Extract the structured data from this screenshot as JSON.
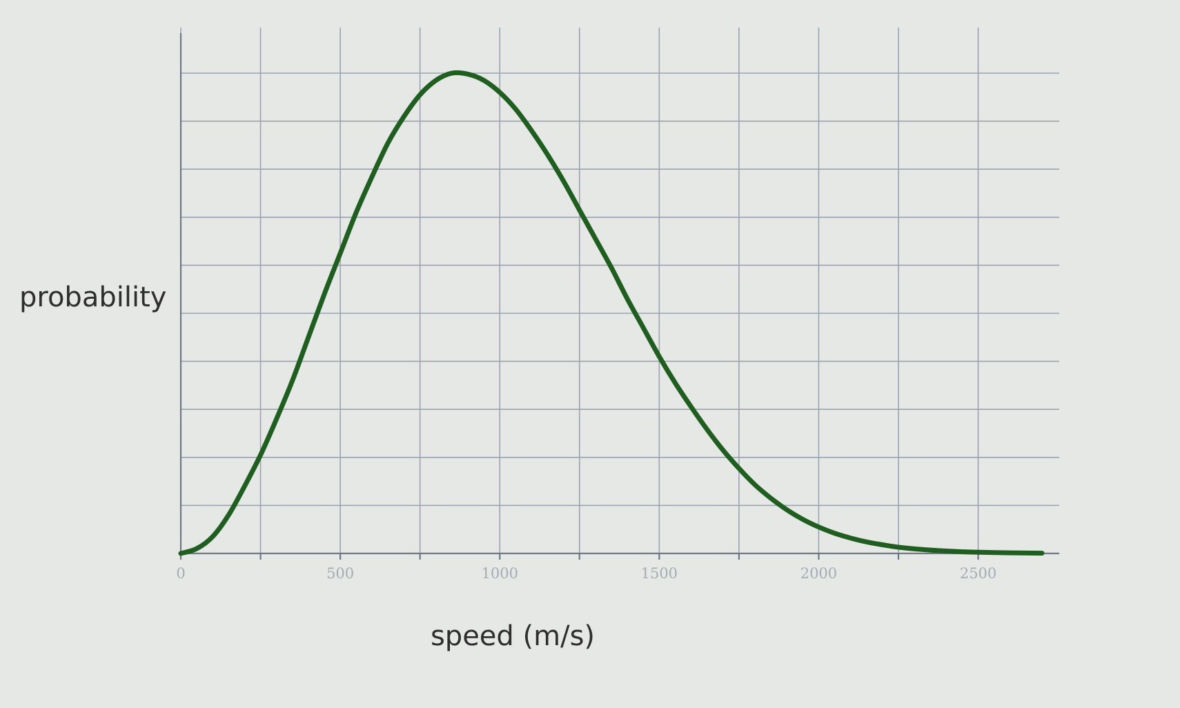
{
  "chart_data": {
    "type": "line",
    "title": "",
    "xlabel": "speed (m/s)",
    "ylabel": "probability",
    "xlim": [
      0,
      2700
    ],
    "ylim": [
      0,
      1.0
    ],
    "grid": true,
    "x_ticks": [
      {
        "value": 0,
        "label": "0"
      },
      {
        "value": 500,
        "label": "500"
      },
      {
        "value": 1000,
        "label": "1000"
      },
      {
        "value": 1500,
        "label": "1500"
      },
      {
        "value": 2000,
        "label": "2000"
      },
      {
        "value": 2500,
        "label": "2500"
      }
    ],
    "x_gridlines": [
      0,
      250,
      500,
      750,
      1000,
      1250,
      1500,
      1750,
      2000,
      2250,
      2500
    ],
    "y_gridlines": [
      0,
      0.1,
      0.2,
      0.3,
      0.4,
      0.5,
      0.6,
      0.7,
      0.8,
      0.9,
      1.0
    ],
    "y_tick_labels_shown": false,
    "series": [
      {
        "color": "#1e5e1e",
        "x": [
          0,
          50,
          100,
          150,
          200,
          250,
          300,
          350,
          400,
          450,
          500,
          550,
          600,
          650,
          700,
          750,
          800,
          850,
          900,
          950,
          1000,
          1050,
          1100,
          1150,
          1200,
          1250,
          1300,
          1350,
          1400,
          1450,
          1500,
          1550,
          1600,
          1650,
          1700,
          1750,
          1800,
          1850,
          1900,
          1950,
          2000,
          2050,
          2100,
          2150,
          2200,
          2250,
          2300,
          2350,
          2400,
          2450,
          2500,
          2550,
          2600,
          2650,
          2700
        ],
        "y": [
          0.0,
          0.01,
          0.035,
          0.08,
          0.14,
          0.205,
          0.28,
          0.36,
          0.45,
          0.54,
          0.625,
          0.71,
          0.785,
          0.855,
          0.91,
          0.955,
          0.985,
          1.0,
          0.998,
          0.985,
          0.96,
          0.925,
          0.88,
          0.83,
          0.775,
          0.715,
          0.655,
          0.595,
          0.53,
          0.47,
          0.41,
          0.355,
          0.305,
          0.258,
          0.215,
          0.177,
          0.143,
          0.115,
          0.091,
          0.071,
          0.055,
          0.042,
          0.032,
          0.024,
          0.018,
          0.013,
          0.0095,
          0.007,
          0.005,
          0.0035,
          0.0025,
          0.0018,
          0.0013,
          0.0009,
          0.0006
        ]
      }
    ]
  }
}
